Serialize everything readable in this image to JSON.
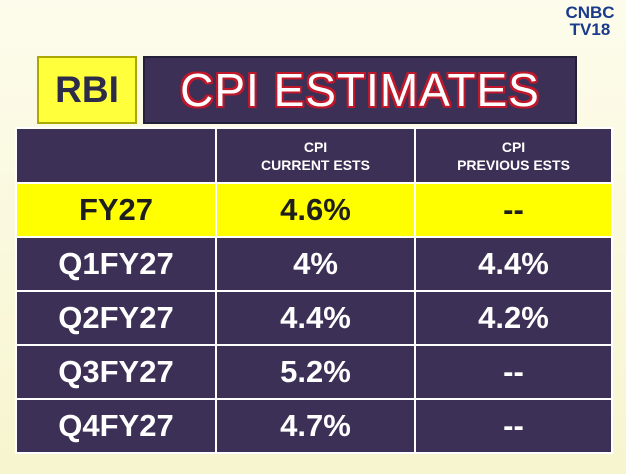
{
  "logo": {
    "line1": "CNBC",
    "line2": "TV18"
  },
  "header": {
    "tag": "RBI",
    "title": "CPI ESTIMATES"
  },
  "table": {
    "columns": [
      "",
      {
        "line1": "CPI",
        "line2": "CURRENT ESTS"
      },
      {
        "line1": "CPI",
        "line2": "PREVIOUS ESTS"
      }
    ],
    "rows": [
      {
        "period": "FY27",
        "current": "4.6%",
        "previous": "--",
        "highlighted": true
      },
      {
        "period": "Q1FY27",
        "current": "4%",
        "previous": "4.4%"
      },
      {
        "period": "Q2FY27",
        "current": "4.4%",
        "previous": "4.2%"
      },
      {
        "period": "Q3FY27",
        "current": "5.2%",
        "previous": "--"
      },
      {
        "period": "Q4FY27",
        "current": "4.7%",
        "previous": "--"
      }
    ]
  },
  "colors": {
    "panel": "#3c3056",
    "highlight": "#ffff00",
    "title_outline": "#c0182a"
  }
}
